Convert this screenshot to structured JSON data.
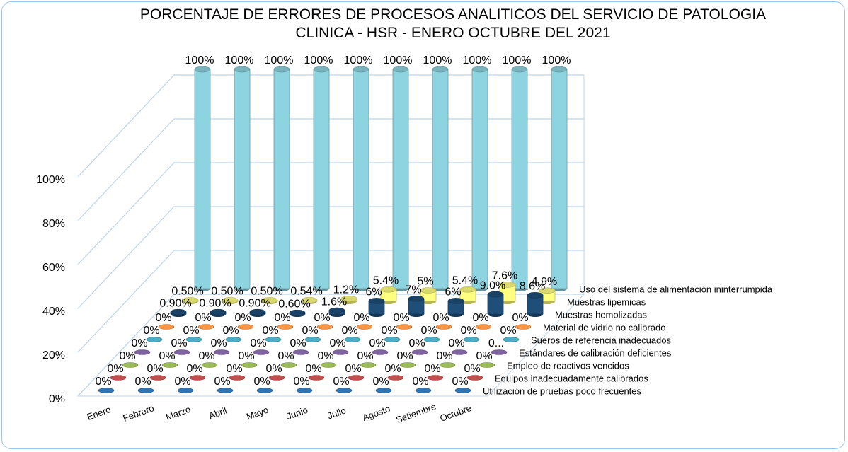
{
  "chart_data": {
    "type": "bar3d",
    "title": "PORCENTAJE DE ERRORES DE PROCESOS ANALITICOS DEL SERVICIO DE PATOLOGIA CLINICA - HSR - ENERO OCTUBRE DEL 2021",
    "categories": [
      "Enero",
      "Febrero",
      "Marzo",
      "Abril",
      "Mayo",
      "Junio",
      "Julio",
      "Agosto",
      "Setiembre",
      "Octubre"
    ],
    "ylim": [
      0,
      100
    ],
    "yticks": [
      {
        "value": 0,
        "label": "0%"
      },
      {
        "value": 20,
        "label": "20%"
      },
      {
        "value": 40,
        "label": "40%"
      },
      {
        "value": 60,
        "label": "60%"
      },
      {
        "value": 80,
        "label": "80%"
      },
      {
        "value": 100,
        "label": "100%"
      }
    ],
    "grid": true,
    "series": [
      {
        "name": "Utilización de pruebas poco frecuentes",
        "color": "#2e75b6",
        "values": [
          0,
          0,
          0,
          0,
          0,
          0,
          0,
          0,
          0,
          0
        ],
        "value_labels": [
          "0%",
          "0%",
          "0%",
          "0%",
          "0%",
          "0%",
          "0%",
          "0%",
          "0%",
          "0%"
        ]
      },
      {
        "name": "Equipos inadecuadamente calibrados",
        "color": "#c0504d",
        "values": [
          0,
          0,
          0,
          0,
          0,
          0,
          0,
          0,
          0,
          0
        ],
        "value_labels": [
          "0%",
          "0%",
          "0%",
          "0%",
          "0%",
          "0%",
          "0%",
          "0%",
          "0%",
          "0%"
        ]
      },
      {
        "name": "Empleo de reactivos vencidos",
        "color": "#9bbb59",
        "values": [
          0,
          0,
          0,
          0,
          0,
          0,
          0,
          0,
          0,
          0
        ],
        "value_labels": [
          "0%",
          "0%",
          "0%",
          "0%",
          "0%",
          "0%",
          "0%",
          "0%",
          "0%",
          "0%"
        ]
      },
      {
        "name": "Estándares de calibración deficientes",
        "color": "#8064a2",
        "values": [
          0,
          0,
          0,
          0,
          0,
          0,
          0,
          0,
          0,
          0
        ],
        "value_labels": [
          "0%",
          "0%",
          "0%",
          "0%",
          "0%",
          "0%",
          "0%",
          "0%",
          "0%",
          "0..."
        ]
      },
      {
        "name": "Sueros de referencia inadecuados",
        "color": "#4bacc6",
        "values": [
          0,
          0,
          0,
          0,
          0,
          0,
          0,
          0,
          0,
          0
        ],
        "value_labels": [
          "0%",
          "0%",
          "0%",
          "0%",
          "0%",
          "0%",
          "0%",
          "0%",
          "0%",
          "0%"
        ]
      },
      {
        "name": "Material de vidrio no calibrado",
        "color": "#f79646",
        "values": [
          0,
          0,
          0,
          0,
          0,
          0,
          0,
          0,
          0,
          0
        ],
        "value_labels": [
          "0%",
          "0%",
          "0%",
          "0%",
          "0%",
          "0%",
          "0%",
          "0%",
          "0%",
          "0%"
        ]
      },
      {
        "name": "Muestras hemolizadas",
        "color": "#1f4e79",
        "values": [
          0.9,
          0.9,
          0.9,
          0.6,
          1.6,
          6,
          7,
          6,
          9.0,
          8.6
        ],
        "value_labels": [
          "0.90%",
          "0.90%",
          "0.90%",
          "0.60%",
          "1.6%",
          "6%",
          "7%",
          "6%",
          "9.0%",
          "8.6%"
        ]
      },
      {
        "name": "Muestras lipemicas",
        "color": "#ffff80",
        "values": [
          0.5,
          0.5,
          0.5,
          0.54,
          1.2,
          5.4,
          5,
          5.4,
          7.6,
          4.9
        ],
        "value_labels": [
          "0.50%",
          "0.50%",
          "0.50%",
          "0.54%",
          "1.2%",
          "5.4%",
          "5%",
          "5.4%",
          "7.6%",
          "4.9%"
        ]
      },
      {
        "name": "Uso del sistema de alimentación ininterrumpida",
        "color": "#8ed3e0",
        "values": [
          100,
          100,
          100,
          100,
          100,
          100,
          100,
          100,
          100,
          100
        ],
        "value_labels": [
          "100%",
          "100%",
          "100%",
          "100%",
          "100%",
          "100%",
          "100%",
          "100%",
          "100%",
          "100%"
        ]
      }
    ]
  }
}
